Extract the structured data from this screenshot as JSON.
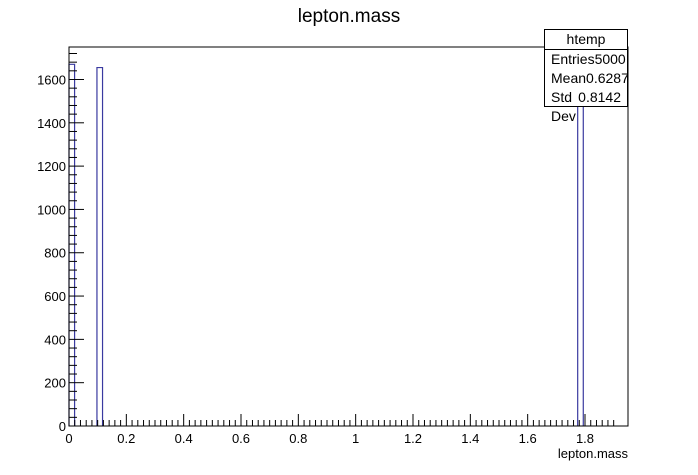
{
  "chart_data": {
    "type": "bar",
    "title": "lepton.mass",
    "xlabel": "lepton.mass",
    "ylabel": "",
    "xlim": [
      0,
      1.95
    ],
    "ylim": [
      0,
      1750
    ],
    "grid": false,
    "bin_width": 0.0195,
    "bins": [
      {
        "x": 0.0,
        "value": 1670
      },
      {
        "x": 0.0975,
        "value": 1655
      },
      {
        "x": 1.7745,
        "value": 1675
      }
    ],
    "x_ticks": [
      "0",
      "0.2",
      "0.4",
      "0.6",
      "0.8",
      "1",
      "1.2",
      "1.4",
      "1.6",
      "1.8"
    ],
    "y_ticks": [
      "0",
      "200",
      "400",
      "600",
      "800",
      "1000",
      "1200",
      "1400",
      "1600"
    ],
    "line_color": "#3a3aa0",
    "stats": {
      "name": "htemp",
      "rows": [
        {
          "label": "Entries",
          "value": "5000"
        },
        {
          "label": "Mean",
          "value": "0.6287"
        },
        {
          "label": "Std Dev",
          "value": "0.8142"
        }
      ]
    }
  }
}
